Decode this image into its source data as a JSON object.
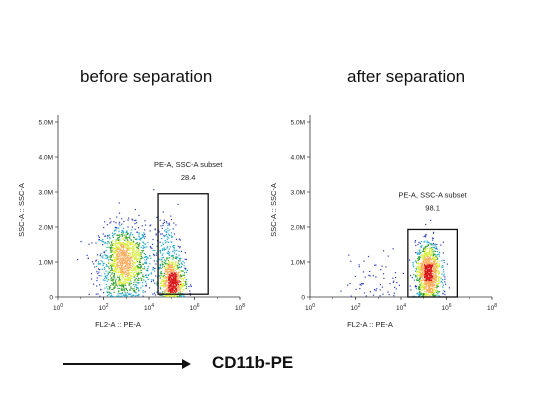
{
  "chart_data": [
    {
      "type": "scatter",
      "title": "before separation",
      "xlabel": "FL2-A :: PE-A",
      "ylabel": "SSC-A :: SSC-A",
      "x_scale": "log",
      "xlim": [
        1,
        100000000
      ],
      "ylim": [
        0,
        5200000
      ],
      "x_ticks": [
        {
          "base": "10",
          "exp": "0",
          "value": 1
        },
        {
          "base": "10",
          "exp": "2",
          "value": 100
        },
        {
          "base": "10",
          "exp": "4",
          "value": 10000
        },
        {
          "base": "10",
          "exp": "6",
          "value": 1000000
        },
        {
          "base": "10",
          "exp": "8",
          "value": 100000000
        }
      ],
      "y_ticks": [
        {
          "label": "0",
          "value": 0
        },
        {
          "label": "1.0M",
          "value": 1000000
        },
        {
          "label": "2.0M",
          "value": 2000000
        },
        {
          "label": "3.0M",
          "value": 3000000
        },
        {
          "label": "4.0M",
          "value": 4000000
        },
        {
          "label": "5.0M",
          "value": 5000000
        }
      ],
      "gate": {
        "label": "PE-A, SSC-A subset",
        "percent": "28.4",
        "x_range": [
          25000,
          4000000
        ],
        "y_range": [
          80000,
          2950000
        ]
      },
      "populations": [
        {
          "x_center": 800,
          "y_center": 1000000,
          "y_spread": 520000,
          "log_spread": 0.55,
          "count": 1300
        },
        {
          "x_center": 100000,
          "y_center": 450000,
          "y_spread": 320000,
          "log_spread": 0.28,
          "count": 650
        },
        {
          "x_center": 60000,
          "y_center": 1300000,
          "y_spread": 500000,
          "log_spread": 0.3,
          "count": 200
        }
      ]
    },
    {
      "type": "scatter",
      "title": "after separation",
      "xlabel": "FL2-A :: PE-A",
      "ylabel": "SSC-A :: SSC-A",
      "x_scale": "log",
      "xlim": [
        1,
        100000000
      ],
      "ylim": [
        0,
        5200000
      ],
      "x_ticks": [
        {
          "base": "10",
          "exp": "0",
          "value": 1
        },
        {
          "base": "10",
          "exp": "2",
          "value": 100
        },
        {
          "base": "10",
          "exp": "4",
          "value": 10000
        },
        {
          "base": "10",
          "exp": "6",
          "value": 1000000
        },
        {
          "base": "10",
          "exp": "8",
          "value": 100000000
        }
      ],
      "y_ticks": [
        {
          "label": "0",
          "value": 0
        },
        {
          "label": "1.0M",
          "value": 1000000
        },
        {
          "label": "2.0M",
          "value": 2000000
        },
        {
          "label": "3.0M",
          "value": 3000000
        },
        {
          "label": "4.0M",
          "value": 4000000
        },
        {
          "label": "5.0M",
          "value": 5000000
        }
      ],
      "gate": {
        "label": "PE-A, SSC-A subset",
        "percent": "98.1",
        "x_range": [
          20000,
          3000000
        ],
        "y_range": [
          0,
          1930000
        ]
      },
      "populations": [
        {
          "x_center": 150000,
          "y_center": 700000,
          "y_spread": 420000,
          "log_spread": 0.28,
          "count": 1100
        },
        {
          "x_center": 800,
          "y_center": 450000,
          "y_spread": 400000,
          "log_spread": 0.7,
          "count": 70
        }
      ]
    }
  ],
  "footer": {
    "marker_label": "CD11b-PE"
  }
}
